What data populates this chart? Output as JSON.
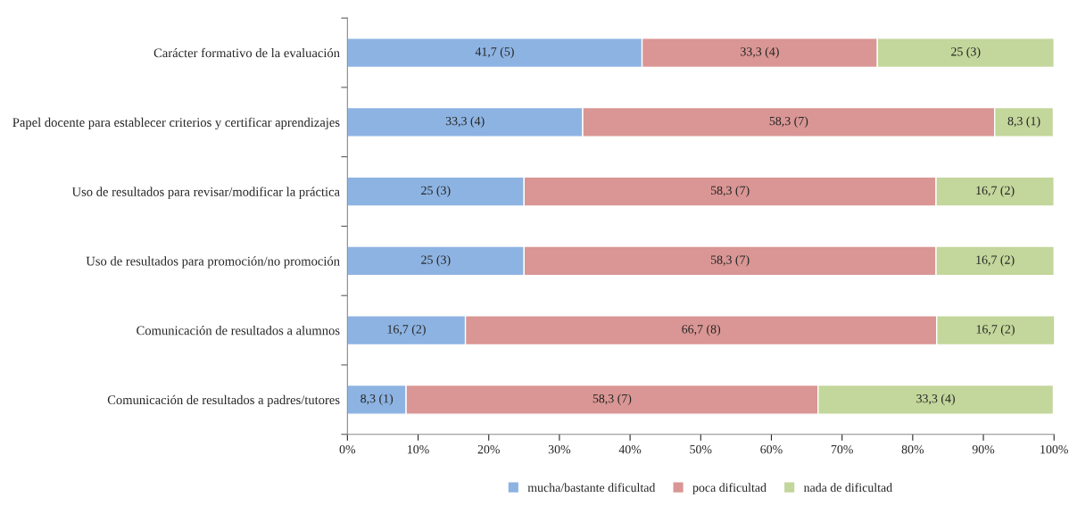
{
  "chart_data": {
    "type": "bar",
    "orientation": "horizontal",
    "stacked": true,
    "categories": [
      "Carácter formativo de la evaluación",
      "Papel docente para establecer criterios y certificar aprendizajes",
      "Uso de resultados para revisar/modificar la práctica",
      "Uso de resultados para promoción/no promoción",
      "Comunicación de resultados a alumnos",
      "Comunicación de resultados a padres/tutores"
    ],
    "series": [
      {
        "name": "mucha/bastante dificultad",
        "color": "#8db3e2",
        "values": [
          41.7,
          33.3,
          25,
          25,
          16.7,
          8.3
        ],
        "value_labels": [
          "41,7 (5)",
          "33,3 (4)",
          "25 (3)",
          "25 (3)",
          "16,7 (2)",
          "8,3 (1)"
        ]
      },
      {
        "name": "poca dificultad",
        "color": "#d99694",
        "values": [
          33.3,
          58.3,
          58.3,
          58.3,
          66.7,
          58.3
        ],
        "value_labels": [
          "33,3 (4)",
          "58,3 (7)",
          "58,3 (7)",
          "58,3 (7)",
          "66,7 (8)",
          "58,3 (7)"
        ]
      },
      {
        "name": "nada de dificultad",
        "color": "#c3d69b",
        "values": [
          25,
          8.3,
          16.7,
          16.7,
          16.7,
          33.3
        ],
        "value_labels": [
          "25 (3)",
          "8,3 (1)",
          "16,7 (2)",
          "16,7 (2)",
          "16,7 (2)",
          "33,3 (4)"
        ]
      }
    ],
    "xlim": [
      0,
      100
    ],
    "xticks": [
      {
        "value": 0,
        "label": "0%"
      },
      {
        "value": 10,
        "label": "10%"
      },
      {
        "value": 20,
        "label": "20%"
      },
      {
        "value": 30,
        "label": "30%"
      },
      {
        "value": 40,
        "label": "40%"
      },
      {
        "value": 50,
        "label": "50%"
      },
      {
        "value": 60,
        "label": "60%"
      },
      {
        "value": 70,
        "label": "70%"
      },
      {
        "value": 80,
        "label": "80%"
      },
      {
        "value": 90,
        "label": "90%"
      },
      {
        "value": 100,
        "label": "100%"
      }
    ],
    "grid": false,
    "legend": "bottom"
  }
}
